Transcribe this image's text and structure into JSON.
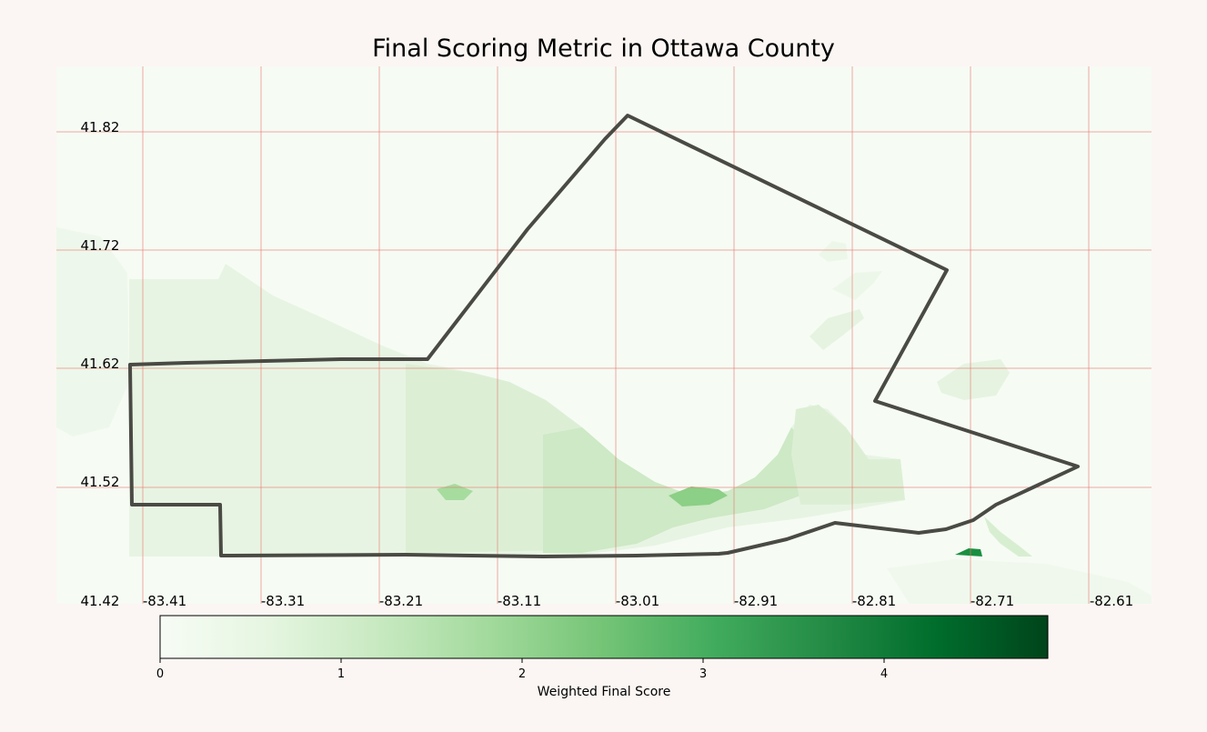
{
  "title": "Final Scoring Metric in Ottawa County",
  "map": {
    "longitude_ticks": [
      "-83.41",
      "-83.31",
      "-83.21",
      "-83.11",
      "-83.01",
      "-82.91",
      "-82.81",
      "-82.71",
      "-82.61"
    ],
    "latitude_ticks": [
      "41.82",
      "41.72",
      "41.62",
      "41.52",
      "41.42"
    ],
    "grid_color": "#e8756a",
    "boundary_color": "#4a4a44",
    "background": "#f6fbf4"
  },
  "colorbar": {
    "label": "Weighted Final Score",
    "ticks": [
      "0",
      "1",
      "2",
      "3",
      "4"
    ],
    "range": [
      0,
      4.9
    ],
    "colormap": "Greens",
    "colors": [
      "#f7fcf5",
      "#e5f5e0",
      "#c7e9c0",
      "#a1d99b",
      "#74c476",
      "#41ab5d",
      "#238b45",
      "#006d2c",
      "#00441b"
    ]
  }
}
